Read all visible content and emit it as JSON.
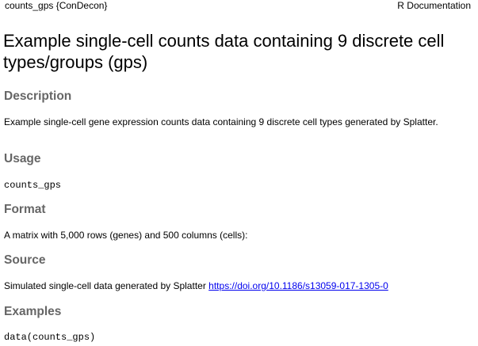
{
  "header": {
    "topic": "counts_gps {ConDecon}",
    "label": "R Documentation"
  },
  "title": "Example single-cell counts data containing 9 discrete cell types/groups (gps)",
  "sections": {
    "description": {
      "heading": "Description",
      "text": "Example single-cell gene expression counts data containing 9 discrete cell types generated by Splatter."
    },
    "usage": {
      "heading": "Usage",
      "code": "counts_gps"
    },
    "format": {
      "heading": "Format",
      "text": "A matrix with 5,000 rows (genes) and 500 columns (cells):"
    },
    "source": {
      "heading": "Source",
      "text": "Simulated single-cell data generated by Splatter",
      "link_text": "https://doi.org/10.1186/s13059-017-1305-0"
    },
    "examples": {
      "heading": "Examples",
      "code": "data(counts_gps)"
    }
  },
  "colors": {
    "heading": "#666666",
    "link": "#0000ee",
    "text": "#000000",
    "background": "#ffffff"
  }
}
